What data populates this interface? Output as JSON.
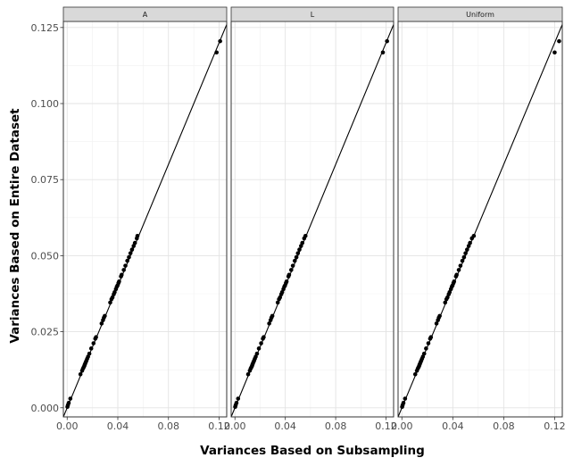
{
  "chart_data": {
    "type": "scatter",
    "xlabel": "Variances Based on Subsampling",
    "ylabel": "Variances Based on Entire Dataset",
    "xlim": [
      -0.003,
      0.126
    ],
    "ylim": [
      -0.003,
      0.127
    ],
    "x_ticks": [
      "0.00",
      "0.04",
      "0.08",
      "0.12"
    ],
    "x_tick_values": [
      0.0,
      0.04,
      0.08,
      0.12
    ],
    "y_ticks": [
      "0.000",
      "0.025",
      "0.050",
      "0.075",
      "0.100",
      "0.125"
    ],
    "y_tick_values": [
      0.0,
      0.025,
      0.05,
      0.075,
      0.1,
      0.125
    ],
    "grid": true,
    "reference_line": {
      "intercept": 0,
      "slope": 1
    },
    "panels": [
      {
        "label": "A",
        "points": [
          [
            0.0002,
            0.0003
          ],
          [
            0.0006,
            0.0009
          ],
          [
            0.0012,
            0.0016
          ],
          [
            0.0025,
            0.003
          ],
          [
            0.0105,
            0.011
          ],
          [
            0.0118,
            0.0122
          ],
          [
            0.0125,
            0.0129
          ],
          [
            0.013,
            0.0133
          ],
          [
            0.0135,
            0.0137
          ],
          [
            0.0138,
            0.0141
          ],
          [
            0.0142,
            0.0145
          ],
          [
            0.0147,
            0.015
          ],
          [
            0.0152,
            0.0155
          ],
          [
            0.0158,
            0.0161
          ],
          [
            0.0165,
            0.0168
          ],
          [
            0.0175,
            0.0178
          ],
          [
            0.019,
            0.0195
          ],
          [
            0.0208,
            0.0212
          ],
          [
            0.0222,
            0.0227
          ],
          [
            0.0228,
            0.0232
          ],
          [
            0.0272,
            0.0277
          ],
          [
            0.0283,
            0.0288
          ],
          [
            0.029,
            0.0296
          ],
          [
            0.0297,
            0.0302
          ],
          [
            0.034,
            0.0346
          ],
          [
            0.035,
            0.0357
          ],
          [
            0.0358,
            0.0363
          ],
          [
            0.0368,
            0.0373
          ],
          [
            0.0375,
            0.038
          ],
          [
            0.0385,
            0.039
          ],
          [
            0.0392,
            0.0398
          ],
          [
            0.0398,
            0.0402
          ],
          [
            0.0405,
            0.041
          ],
          [
            0.041,
            0.0415
          ],
          [
            0.0425,
            0.0432
          ],
          [
            0.043,
            0.0437
          ],
          [
            0.0447,
            0.0453
          ],
          [
            0.046,
            0.0467
          ],
          [
            0.0475,
            0.0483
          ],
          [
            0.0488,
            0.0495
          ],
          [
            0.05,
            0.0508
          ],
          [
            0.0512,
            0.052
          ],
          [
            0.0525,
            0.0532
          ],
          [
            0.0535,
            0.0542
          ],
          [
            0.055,
            0.0557
          ],
          [
            0.0555,
            0.0565
          ],
          [
            0.118,
            0.1168
          ],
          [
            0.1208,
            0.1205
          ]
        ]
      },
      {
        "label": "L",
        "points": [
          [
            0.0002,
            0.0003
          ],
          [
            0.0006,
            0.0009
          ],
          [
            0.0012,
            0.0016
          ],
          [
            0.0025,
            0.003
          ],
          [
            0.0105,
            0.011
          ],
          [
            0.0118,
            0.0122
          ],
          [
            0.0125,
            0.0129
          ],
          [
            0.013,
            0.0133
          ],
          [
            0.0135,
            0.0137
          ],
          [
            0.0138,
            0.0141
          ],
          [
            0.0142,
            0.0145
          ],
          [
            0.0147,
            0.015
          ],
          [
            0.0152,
            0.0155
          ],
          [
            0.0158,
            0.0161
          ],
          [
            0.0165,
            0.0168
          ],
          [
            0.0175,
            0.0178
          ],
          [
            0.019,
            0.0195
          ],
          [
            0.0208,
            0.0212
          ],
          [
            0.0222,
            0.0227
          ],
          [
            0.0228,
            0.0232
          ],
          [
            0.0272,
            0.0277
          ],
          [
            0.0283,
            0.0288
          ],
          [
            0.029,
            0.0296
          ],
          [
            0.0297,
            0.0302
          ],
          [
            0.034,
            0.0346
          ],
          [
            0.035,
            0.0357
          ],
          [
            0.0358,
            0.0363
          ],
          [
            0.0368,
            0.0373
          ],
          [
            0.0375,
            0.038
          ],
          [
            0.0385,
            0.039
          ],
          [
            0.0392,
            0.0398
          ],
          [
            0.0398,
            0.0402
          ],
          [
            0.0405,
            0.041
          ],
          [
            0.041,
            0.0415
          ],
          [
            0.0425,
            0.0432
          ],
          [
            0.043,
            0.0437
          ],
          [
            0.0447,
            0.0453
          ],
          [
            0.046,
            0.0467
          ],
          [
            0.0475,
            0.0483
          ],
          [
            0.0488,
            0.0495
          ],
          [
            0.05,
            0.0508
          ],
          [
            0.0512,
            0.052
          ],
          [
            0.0525,
            0.0532
          ],
          [
            0.0535,
            0.0542
          ],
          [
            0.055,
            0.0557
          ],
          [
            0.056,
            0.0565
          ],
          [
            0.1175,
            0.1168
          ],
          [
            0.1208,
            0.1205
          ]
        ]
      },
      {
        "label": "Uniform",
        "points": [
          [
            0.0002,
            0.0003
          ],
          [
            0.0006,
            0.0009
          ],
          [
            0.0012,
            0.0016
          ],
          [
            0.0025,
            0.003
          ],
          [
            0.0105,
            0.011
          ],
          [
            0.0118,
            0.0122
          ],
          [
            0.0125,
            0.0129
          ],
          [
            0.013,
            0.0133
          ],
          [
            0.0135,
            0.0137
          ],
          [
            0.0138,
            0.0141
          ],
          [
            0.0142,
            0.0145
          ],
          [
            0.0147,
            0.015
          ],
          [
            0.0152,
            0.0155
          ],
          [
            0.0158,
            0.0161
          ],
          [
            0.0165,
            0.0168
          ],
          [
            0.0175,
            0.0178
          ],
          [
            0.019,
            0.0195
          ],
          [
            0.0208,
            0.0212
          ],
          [
            0.0222,
            0.0227
          ],
          [
            0.0228,
            0.0232
          ],
          [
            0.0272,
            0.0277
          ],
          [
            0.0283,
            0.0288
          ],
          [
            0.029,
            0.0296
          ],
          [
            0.0297,
            0.0302
          ],
          [
            0.034,
            0.0346
          ],
          [
            0.035,
            0.0357
          ],
          [
            0.0358,
            0.0363
          ],
          [
            0.0368,
            0.0373
          ],
          [
            0.0375,
            0.038
          ],
          [
            0.0385,
            0.039
          ],
          [
            0.0392,
            0.0398
          ],
          [
            0.0398,
            0.0402
          ],
          [
            0.0405,
            0.041
          ],
          [
            0.041,
            0.0415
          ],
          [
            0.0425,
            0.0432
          ],
          [
            0.043,
            0.0437
          ],
          [
            0.0447,
            0.0453
          ],
          [
            0.046,
            0.0467
          ],
          [
            0.0475,
            0.0483
          ],
          [
            0.0488,
            0.0495
          ],
          [
            0.05,
            0.0508
          ],
          [
            0.0512,
            0.052
          ],
          [
            0.0525,
            0.0532
          ],
          [
            0.0535,
            0.0542
          ],
          [
            0.055,
            0.0557
          ],
          [
            0.0565,
            0.0565
          ],
          [
            0.12,
            0.1168
          ],
          [
            0.1235,
            0.1205
          ]
        ]
      }
    ]
  }
}
